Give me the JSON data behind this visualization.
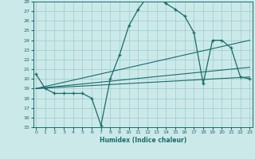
{
  "xlabel": "Humidex (Indice chaleur)",
  "bg_color": "#cce9e9",
  "line_color": "#1a6b6b",
  "grid_color": "#99cccc",
  "xmin": 0,
  "xmax": 23,
  "ymin": 15,
  "ymax": 28,
  "curve1_x": [
    0,
    1,
    2,
    3,
    4,
    5,
    6,
    7,
    8,
    9,
    10,
    11,
    12,
    13,
    14,
    15,
    16,
    17,
    18,
    19,
    20,
    21,
    22,
    23
  ],
  "curve1_y": [
    20.5,
    19.0,
    18.5,
    18.5,
    18.5,
    18.5,
    18.0,
    15.2,
    20.0,
    22.5,
    25.5,
    27.2,
    28.5,
    28.5,
    27.8,
    27.2,
    26.5,
    24.8,
    19.5,
    24.0,
    24.0,
    23.2,
    20.2,
    20.0
  ],
  "curve2_x": [
    0,
    23
  ],
  "curve2_y": [
    19.0,
    24.0
  ],
  "curve3_x": [
    0,
    23
  ],
  "curve3_y": [
    19.0,
    20.2
  ],
  "curve4_x": [
    0,
    23
  ],
  "curve4_y": [
    19.0,
    21.2
  ]
}
